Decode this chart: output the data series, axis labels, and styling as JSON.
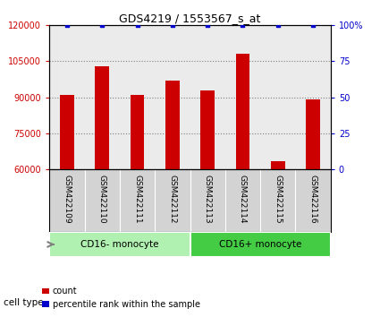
{
  "title": "GDS4219 / 1553567_s_at",
  "samples": [
    "GSM422109",
    "GSM422110",
    "GSM422111",
    "GSM422112",
    "GSM422113",
    "GSM422114",
    "GSM422115",
    "GSM422116"
  ],
  "counts": [
    91000,
    103000,
    91000,
    97000,
    93000,
    108000,
    63500,
    89000
  ],
  "percentile_ranks": [
    100,
    100,
    100,
    100,
    100,
    100,
    100,
    100
  ],
  "ylim_left": [
    60000,
    120000
  ],
  "ylim_right": [
    0,
    100
  ],
  "yticks_left": [
    60000,
    75000,
    90000,
    105000,
    120000
  ],
  "yticks_right": [
    0,
    25,
    50,
    75,
    100
  ],
  "bar_color": "#cc0000",
  "dot_color": "#0000cc",
  "cell_type_groups": [
    {
      "label": "CD16- monocyte",
      "indices": [
        0,
        1,
        2,
        3
      ],
      "color": "#b0f0b0"
    },
    {
      "label": "CD16+ monocyte",
      "indices": [
        4,
        5,
        6,
        7
      ],
      "color": "#44cc44"
    }
  ],
  "cell_type_label": "cell type",
  "legend_count_label": "count",
  "legend_pct_label": "percentile rank within the sample",
  "background_color": "#ffffff",
  "plot_bg_color": "#ebebeb",
  "label_area_color": "#d3d3d3",
  "bar_width": 0.4
}
